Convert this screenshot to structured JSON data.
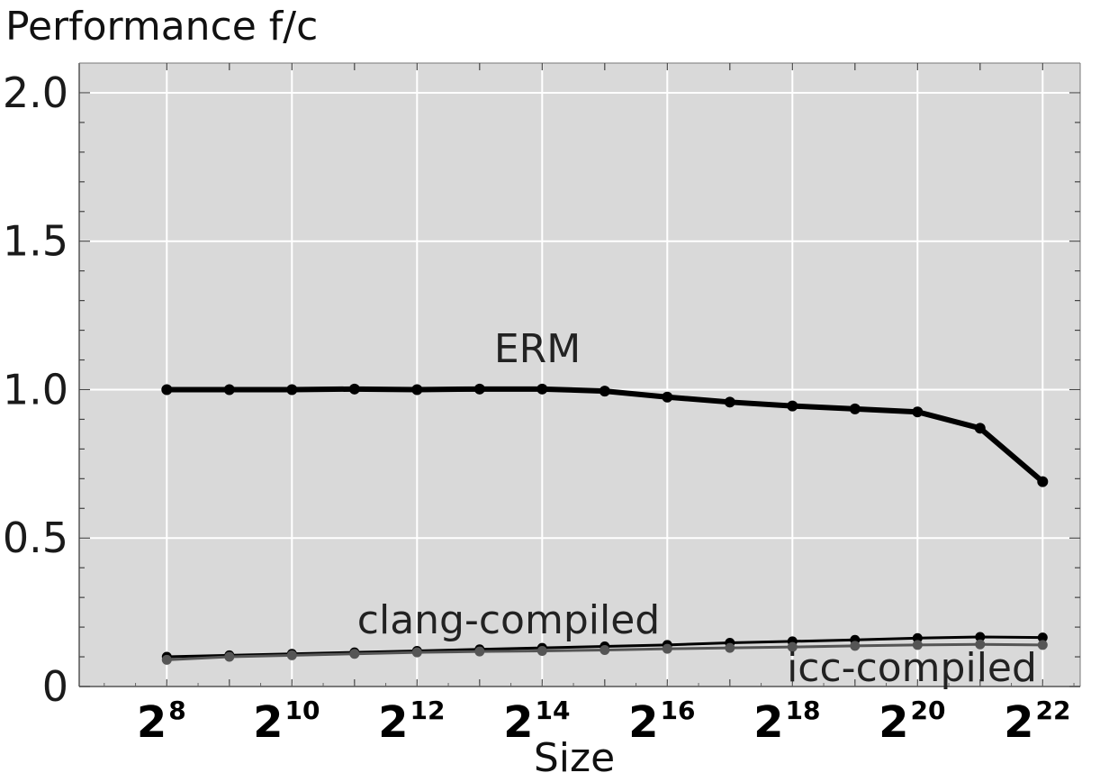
{
  "chart_data": {
    "type": "line",
    "title": "Performance f/c",
    "xlabel": "Size",
    "ylabel": "",
    "x_scale": "log2",
    "x_exponents": [
      8,
      9,
      10,
      11,
      12,
      13,
      14,
      15,
      16,
      17,
      18,
      19,
      20,
      21,
      22
    ],
    "x_tick_labels": [
      {
        "base": "2",
        "exp": "8"
      },
      {
        "base": "2",
        "exp": "10"
      },
      {
        "base": "2",
        "exp": "12"
      },
      {
        "base": "2",
        "exp": "14"
      },
      {
        "base": "2",
        "exp": "16"
      },
      {
        "base": "2",
        "exp": "18"
      },
      {
        "base": "2",
        "exp": "20"
      },
      {
        "base": "2",
        "exp": "22"
      }
    ],
    "y_tick_labels": [
      "2.0",
      "1.5",
      "1.0",
      "0.5",
      "0"
    ],
    "ylim": [
      0,
      2.1
    ],
    "xlim": [
      6.6,
      22.6
    ],
    "grid": true,
    "background_color": "#d9d9d9",
    "series": [
      {
        "name": "ERM",
        "color": "#000000",
        "values": [
          1.0,
          1.0,
          1.0,
          1.002,
          1.0,
          1.002,
          1.002,
          0.995,
          0.975,
          0.958,
          0.945,
          0.935,
          0.925,
          0.87,
          0.69
        ]
      },
      {
        "name": "clang-compiled",
        "color": "#000000",
        "values": [
          0.1,
          0.105,
          0.11,
          0.115,
          0.12,
          0.125,
          0.13,
          0.135,
          0.14,
          0.147,
          0.152,
          0.157,
          0.163,
          0.167,
          0.165
        ]
      },
      {
        "name": "icc-compiled",
        "color": "#555555",
        "values": [
          0.09,
          0.1,
          0.105,
          0.11,
          0.115,
          0.118,
          0.12,
          0.123,
          0.127,
          0.13,
          0.133,
          0.137,
          0.14,
          0.142,
          0.14
        ]
      }
    ]
  }
}
